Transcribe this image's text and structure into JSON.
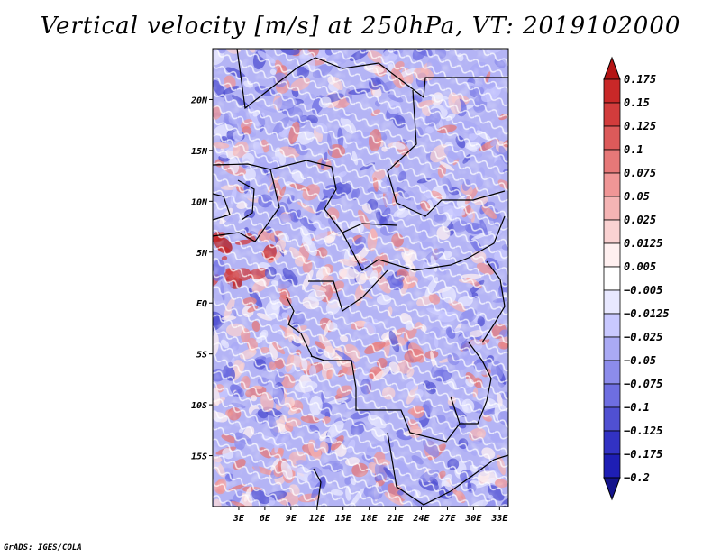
{
  "title": "Vertical velocity [m/s] at 250hPa, VT: 2019102000",
  "footer": "GrADS: IGES/COLA",
  "map": {
    "lat_labels": [
      "20N",
      "15N",
      "10N",
      "5N",
      "EQ",
      "5S",
      "10S",
      "15S"
    ],
    "lat_values": [
      20,
      15,
      10,
      5,
      0,
      -5,
      -10,
      -15
    ],
    "lon_labels": [
      "3E",
      "6E",
      "9E",
      "12E",
      "15E",
      "18E",
      "21E",
      "24E",
      "27E",
      "30E",
      "33E"
    ],
    "lon_values": [
      3,
      6,
      9,
      12,
      15,
      18,
      21,
      24,
      27,
      30,
      33
    ],
    "lon_range": [
      0,
      34
    ],
    "lat_range": [
      -20,
      25
    ]
  },
  "colorbar": {
    "levels": [
      "0.175",
      "0.15",
      "0.125",
      "0.1",
      "0.075",
      "0.05",
      "0.025",
      "0.0125",
      "0.005",
      "−0.005",
      "−0.0125",
      "−0.025",
      "−0.05",
      "−0.075",
      "−0.1",
      "−0.125",
      "−0.175",
      "−0.2"
    ],
    "colors": [
      "#b41414",
      "#c82828",
      "#d23c3c",
      "#dc5a5a",
      "#e67878",
      "#f09696",
      "#f5b4b4",
      "#fad2d2",
      "#fff0f0",
      "#ffffff",
      "#e8e8ff",
      "#c8c8ff",
      "#aaaaf5",
      "#8c8ceb",
      "#6e6ee1",
      "#5050d2",
      "#3232c3",
      "#1e1eb4",
      "#14148c"
    ]
  }
}
